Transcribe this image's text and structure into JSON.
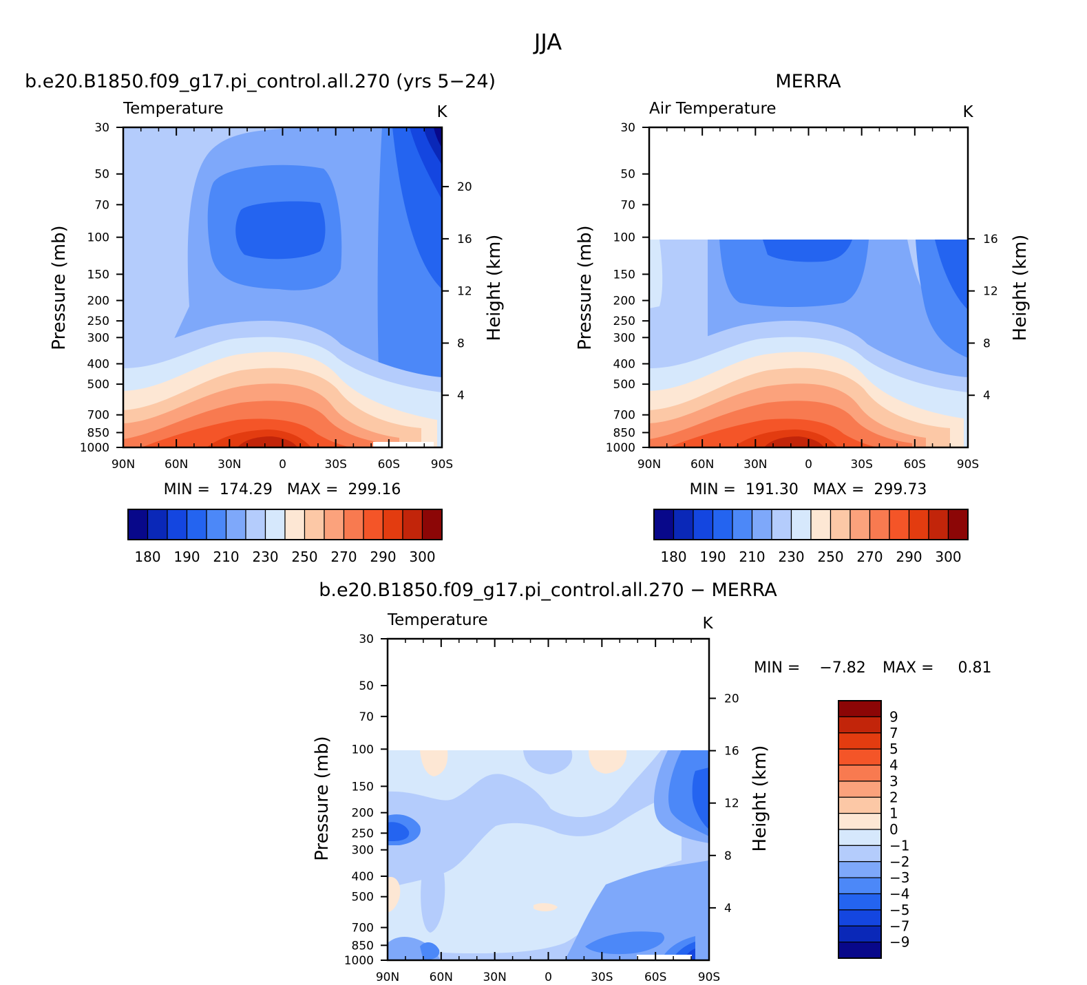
{
  "figure": {
    "title": "JJA"
  },
  "colors": {
    "temperature_scale": [
      "#08088a",
      "#0a28b8",
      "#1446e0",
      "#2464f0",
      "#4c88f8",
      "#7ea8fa",
      "#b4ccfc",
      "#d6e8fc",
      "#fde7d4",
      "#fcc8a6",
      "#fba27c",
      "#f87a50",
      "#f45528",
      "#e33c10",
      "#c2250a",
      "#8c0606"
    ],
    "difference_scale": [
      "#08088a",
      "#0a28b8",
      "#1446e0",
      "#2464f0",
      "#4c88f8",
      "#7ea8fa",
      "#b4ccfc",
      "#d6e8fc",
      "#fde7d4",
      "#fcc8a6",
      "#fba27c",
      "#f87a50",
      "#f45528",
      "#e33c10",
      "#c2250a",
      "#8c0606"
    ]
  },
  "panels": [
    {
      "id": "model",
      "title": "b.e20.B1850.f09_g17.pi_control.all.270 (yrs 5−24)",
      "left_label": "Temperature",
      "right_label": "K",
      "stats": "MIN =  174.29   MAX =  299.16",
      "colorbar_labels": [
        "180",
        "190",
        "210",
        "230",
        "250",
        "270",
        "290",
        "300"
      ]
    },
    {
      "id": "obs",
      "title": "MERRA",
      "left_label": "Air Temperature",
      "right_label": "K",
      "stats": "MIN =  191.30   MAX =  299.73",
      "colorbar_labels": [
        "180",
        "190",
        "210",
        "230",
        "250",
        "270",
        "290",
        "300"
      ]
    },
    {
      "id": "diff",
      "title": "b.e20.B1850.f09_g17.pi_control.all.270 − MERRA",
      "left_label": "Temperature",
      "right_label": "K",
      "stats_min": "MIN =    −7.82",
      "stats_max": "MAX =     0.81",
      "colorbar_labels": [
        "9",
        "7",
        "5",
        "4",
        "3",
        "2",
        "1",
        "0",
        "−1",
        "−2",
        "−3",
        "−4",
        "−5",
        "−7",
        "−9"
      ]
    }
  ],
  "chart_data": [
    {
      "type": "heatmap",
      "panel": "model",
      "xlabel": "",
      "ylabel": "Pressure (mb)",
      "y2label": "Height (km)",
      "x_ticks": [
        "90N",
        "60N",
        "30N",
        "0",
        "30S",
        "60S",
        "90S"
      ],
      "x_values": [
        90,
        60,
        30,
        0,
        -30,
        -60,
        -90
      ],
      "y_ticks": [
        30,
        50,
        70,
        100,
        150,
        200,
        250,
        300,
        400,
        500,
        700,
        850,
        1000
      ],
      "y_scale": "log",
      "ylim": [
        1000,
        30
      ],
      "y2_ticks": [
        20,
        16,
        12,
        8,
        4
      ],
      "levels": [
        180,
        190,
        210,
        230,
        250,
        270,
        290,
        300
      ],
      "grid": false
    },
    {
      "type": "heatmap",
      "panel": "obs",
      "xlabel": "",
      "ylabel": "Pressure (mb)",
      "y2label": "Height (km)",
      "x_ticks": [
        "90N",
        "60N",
        "30N",
        "0",
        "30S",
        "60S",
        "90S"
      ],
      "x_values": [
        90,
        60,
        30,
        0,
        -30,
        -60,
        -90
      ],
      "y_ticks": [
        30,
        50,
        70,
        100,
        150,
        200,
        250,
        300,
        400,
        500,
        700,
        850,
        1000
      ],
      "y_scale": "log",
      "ylim": [
        1000,
        30
      ],
      "y2_ticks": [
        16,
        12,
        8,
        4
      ],
      "data_top_pressure": 100,
      "levels": [
        180,
        190,
        210,
        230,
        250,
        270,
        290,
        300
      ],
      "grid": false
    },
    {
      "type": "heatmap",
      "panel": "diff",
      "xlabel": "",
      "ylabel": "Pressure (mb)",
      "y2label": "Height (km)",
      "x_ticks": [
        "90N",
        "60N",
        "30N",
        "0",
        "30S",
        "60S",
        "90S"
      ],
      "x_values": [
        90,
        60,
        30,
        0,
        -30,
        -60,
        -90
      ],
      "y_ticks": [
        30,
        50,
        70,
        100,
        150,
        200,
        250,
        300,
        400,
        500,
        700,
        850,
        1000
      ],
      "y_scale": "log",
      "ylim": [
        1000,
        30
      ],
      "y2_ticks": [
        20,
        16,
        12,
        8,
        4
      ],
      "data_top_pressure": 100,
      "levels": [
        9,
        7,
        5,
        4,
        3,
        2,
        1,
        0,
        -1,
        -2,
        -3,
        -4,
        -5,
        -7,
        -9
      ],
      "grid": false
    }
  ]
}
